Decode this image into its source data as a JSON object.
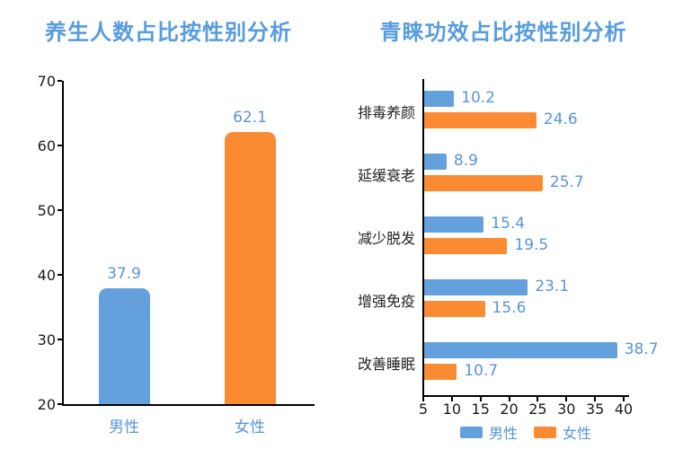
{
  "colors": {
    "male_bar": "#64A1DC",
    "female_bar": "#FA8B32",
    "title_text": "#569CDF",
    "value_text": "#5795DB",
    "axis_line": "#000000",
    "tick_text": "#1a1a1a",
    "category_text": "#222222"
  },
  "chart_data": [
    {
      "type": "bar",
      "orientation": "vertical",
      "title": "养生人数占比按性别分析",
      "categories": [
        "男性",
        "女性"
      ],
      "values": [
        37.9,
        62.1
      ],
      "value_labels": [
        "37.9",
        "62.1"
      ],
      "bar_color_keys": [
        "male_bar",
        "female_bar"
      ],
      "ylim": [
        20,
        70
      ],
      "yticks": [
        20,
        30,
        40,
        50,
        60,
        70
      ],
      "grid": false,
      "legend_position": "none"
    },
    {
      "type": "bar",
      "orientation": "horizontal",
      "title": "青睐功效占比按性别分析",
      "categories": [
        "排毒养颜",
        "延缓衰老",
        "减少脱发",
        "增强免疫",
        "改善睡眠"
      ],
      "series": [
        {
          "name": "男性",
          "color_key": "male_bar",
          "values": [
            10.2,
            8.9,
            15.4,
            23.1,
            38.7
          ]
        },
        {
          "name": "女性",
          "color_key": "female_bar",
          "values": [
            24.6,
            25.7,
            19.5,
            15.6,
            10.7
          ]
        }
      ],
      "xlim": [
        5,
        40
      ],
      "xticks": [
        5,
        10,
        15,
        20,
        25,
        30,
        35,
        40
      ],
      "grid": false,
      "legend_position": "bottom"
    }
  ]
}
